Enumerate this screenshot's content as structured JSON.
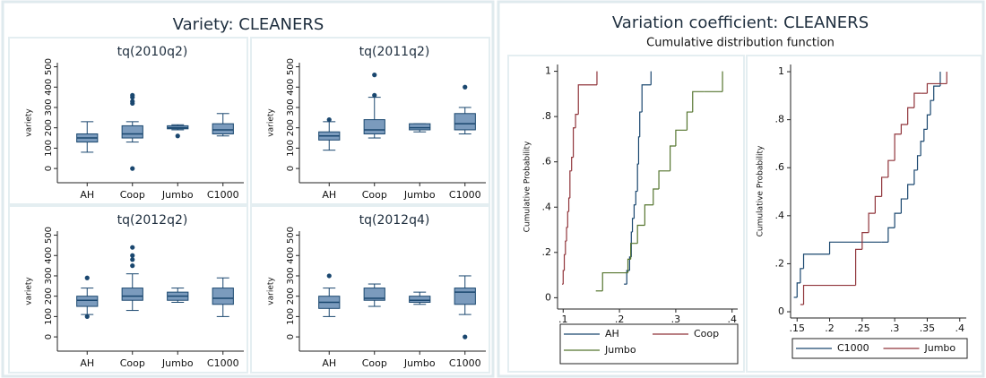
{
  "panels": [
    {
      "title": "Variety: CLEANERS"
    },
    {
      "title": "Variation coefficient: CLEANERS",
      "subtitle": "Cumulative distribution function"
    }
  ],
  "chart_data": [
    {
      "type": "box",
      "title": "tq(2010q2)",
      "y_label": "variety",
      "categories": [
        "AH",
        "Coop",
        "Jumbo",
        "C1000"
      ],
      "color": "#7b9bbd",
      "line_color": "#1a476f",
      "ylim": [
        -70,
        520
      ],
      "yticks": [
        0,
        100,
        200,
        300,
        400,
        500
      ],
      "boxes": [
        {
          "min": 80,
          "q1": 130,
          "median": 150,
          "q3": 170,
          "max": 230,
          "outliers": []
        },
        {
          "min": 130,
          "q1": 150,
          "median": 170,
          "q3": 210,
          "max": 230,
          "outliers": [
            0,
            320,
            330,
            350,
            360
          ]
        },
        {
          "min": 190,
          "q1": 195,
          "median": 200,
          "q3": 210,
          "max": 215,
          "outliers": [
            160
          ]
        },
        {
          "min": 160,
          "q1": 170,
          "median": 190,
          "q3": 220,
          "max": 270,
          "outliers": []
        }
      ]
    },
    {
      "type": "box",
      "title": "tq(2011q2)",
      "y_label": "variety",
      "categories": [
        "AH",
        "Coop",
        "Jumbo",
        "C1000"
      ],
      "color": "#7b9bbd",
      "line_color": "#1a476f",
      "ylim": [
        -70,
        520
      ],
      "yticks": [
        0,
        100,
        200,
        300,
        400,
        500
      ],
      "boxes": [
        {
          "min": 90,
          "q1": 140,
          "median": 160,
          "q3": 180,
          "max": 230,
          "outliers": [
            240
          ]
        },
        {
          "min": 150,
          "q1": 170,
          "median": 190,
          "q3": 240,
          "max": 350,
          "outliers": [
            360,
            460
          ]
        },
        {
          "min": 180,
          "q1": 190,
          "median": 200,
          "q3": 220,
          "max": 220,
          "outliers": []
        },
        {
          "min": 170,
          "q1": 190,
          "median": 220,
          "q3": 270,
          "max": 300,
          "outliers": [
            400
          ]
        }
      ]
    },
    {
      "type": "box",
      "title": "tq(2012q2)",
      "y_label": "variety",
      "categories": [
        "AH",
        "Coop",
        "Jumbo",
        "C1000"
      ],
      "color": "#7b9bbd",
      "line_color": "#1a476f",
      "ylim": [
        -70,
        520
      ],
      "yticks": [
        0,
        100,
        200,
        300,
        400,
        500
      ],
      "boxes": [
        {
          "min": 110,
          "q1": 150,
          "median": 180,
          "q3": 200,
          "max": 240,
          "outliers": [
            100,
            290
          ]
        },
        {
          "min": 130,
          "q1": 180,
          "median": 200,
          "q3": 240,
          "max": 310,
          "outliers": [
            350,
            380,
            400,
            440
          ]
        },
        {
          "min": 170,
          "q1": 180,
          "median": 200,
          "q3": 220,
          "max": 240,
          "outliers": []
        },
        {
          "min": 100,
          "q1": 160,
          "median": 190,
          "q3": 240,
          "max": 290,
          "outliers": []
        }
      ]
    },
    {
      "type": "box",
      "title": "tq(2012q4)",
      "y_label": "variety",
      "categories": [
        "AH",
        "Coop",
        "Jumbo",
        "C1000"
      ],
      "color": "#7b9bbd",
      "line_color": "#1a476f",
      "ylim": [
        -70,
        520
      ],
      "yticks": [
        0,
        100,
        200,
        300,
        400,
        500
      ],
      "boxes": [
        {
          "min": 100,
          "q1": 140,
          "median": 170,
          "q3": 200,
          "max": 240,
          "outliers": [
            300
          ]
        },
        {
          "min": 150,
          "q1": 180,
          "median": 190,
          "q3": 240,
          "max": 260,
          "outliers": []
        },
        {
          "min": 160,
          "q1": 170,
          "median": 180,
          "q3": 200,
          "max": 220,
          "outliers": []
        },
        {
          "min": 110,
          "q1": 160,
          "median": 220,
          "q3": 240,
          "max": 300,
          "outliers": [
            0
          ]
        }
      ]
    },
    {
      "type": "line",
      "step": true,
      "y_label": "Cumulative Probability",
      "xlim": [
        0.09,
        0.41
      ],
      "xticks": [
        {
          "value": 0.1,
          "label": ".1"
        },
        {
          "value": 0.2,
          "label": ".2"
        },
        {
          "value": 0.3,
          "label": ".3"
        },
        {
          "value": 0.4,
          "label": ".4"
        }
      ],
      "ylim": [
        -0.05,
        1.03
      ],
      "yticks": [
        0,
        {
          "value": 0.2,
          "label": ".2"
        },
        {
          "value": 0.4,
          "label": ".4"
        },
        {
          "value": 0.6,
          "label": ".6"
        },
        {
          "value": 0.8,
          "label": ".8"
        },
        1
      ],
      "legend": "bottom",
      "series": [
        {
          "name": "AH",
          "color": "#1a476f",
          "x": [
            0.208,
            0.213,
            0.218,
            0.221,
            0.223,
            0.226,
            0.229,
            0.232,
            0.234,
            0.236,
            0.24,
            0.256
          ],
          "values": [
            0.06,
            0.12,
            0.18,
            0.29,
            0.35,
            0.41,
            0.47,
            0.59,
            0.71,
            0.82,
            0.94,
            1.0
          ]
        },
        {
          "name": "Coop",
          "color": "#90353b",
          "x": [
            0.098,
            0.1,
            0.102,
            0.104,
            0.106,
            0.108,
            0.11,
            0.112,
            0.115,
            0.118,
            0.122,
            0.127,
            0.16
          ],
          "values": [
            0.06,
            0.12,
            0.19,
            0.25,
            0.31,
            0.38,
            0.44,
            0.56,
            0.62,
            0.75,
            0.81,
            0.94,
            1.0
          ]
        },
        {
          "name": "Jumbo",
          "color": "#55752f",
          "x": [
            0.158,
            0.17,
            0.215,
            0.22,
            0.232,
            0.245,
            0.26,
            0.27,
            0.29,
            0.3,
            0.32,
            0.33,
            0.35,
            0.383
          ],
          "values": [
            0.03,
            0.11,
            0.17,
            0.24,
            0.32,
            0.41,
            0.48,
            0.56,
            0.67,
            0.74,
            0.82,
            0.91,
            0.91,
            1.0
          ]
        }
      ]
    },
    {
      "type": "line",
      "step": true,
      "y_label": "Cumulative Probability",
      "xlim": [
        0.14,
        0.41
      ],
      "xticks": [
        {
          "value": 0.15,
          "label": ".15"
        },
        {
          "value": 0.2,
          "label": ".2"
        },
        {
          "value": 0.25,
          "label": ".25"
        },
        {
          "value": 0.3,
          "label": ".3"
        },
        {
          "value": 0.35,
          "label": ".35"
        },
        {
          "value": 0.4,
          "label": ".4"
        }
      ],
      "ylim": [
        -0.026,
        1.03
      ],
      "yticks": [
        0,
        {
          "value": 0.2,
          "label": ".2"
        },
        {
          "value": 0.4,
          "label": ".4"
        },
        {
          "value": 0.6,
          "label": ".6"
        },
        {
          "value": 0.8,
          "label": ".8"
        },
        1
      ],
      "legend": "bottom",
      "series": [
        {
          "name": "C1000",
          "color": "#1a476f",
          "x": [
            0.145,
            0.15,
            0.155,
            0.16,
            0.2,
            0.28,
            0.29,
            0.3,
            0.31,
            0.32,
            0.33,
            0.335,
            0.34,
            0.345,
            0.35,
            0.355,
            0.36,
            0.37
          ],
          "values": [
            0.06,
            0.12,
            0.18,
            0.24,
            0.29,
            0.29,
            0.35,
            0.41,
            0.47,
            0.53,
            0.59,
            0.65,
            0.71,
            0.76,
            0.82,
            0.88,
            0.94,
            1.0
          ]
        },
        {
          "name": "Jumbo",
          "color": "#90353b",
          "x": [
            0.155,
            0.16,
            0.24,
            0.25,
            0.26,
            0.27,
            0.28,
            0.29,
            0.3,
            0.31,
            0.32,
            0.33,
            0.34,
            0.35,
            0.38
          ],
          "values": [
            0.03,
            0.11,
            0.26,
            0.33,
            0.41,
            0.48,
            0.56,
            0.63,
            0.74,
            0.78,
            0.85,
            0.91,
            0.91,
            0.95,
            1.0
          ]
        }
      ]
    }
  ]
}
